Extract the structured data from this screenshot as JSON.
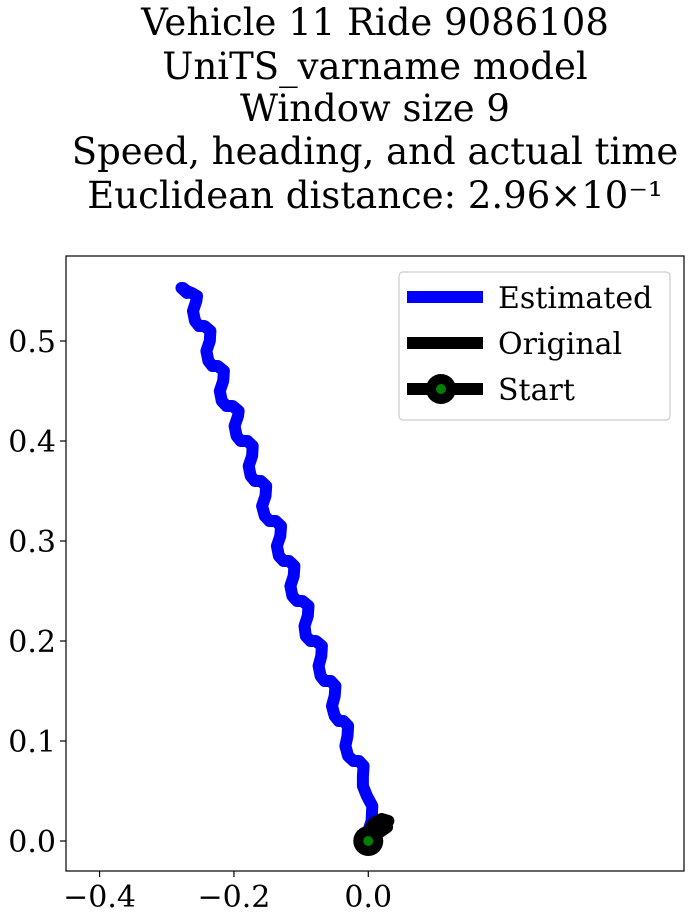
{
  "chart_data": {
    "type": "line",
    "title_lines": [
      "Vehicle 11 Ride 9086108",
      "UniTS_varname model",
      "Window size 9",
      "Speed, heading, and actual time",
      "Euclidean distance: 2.96×10⁻¹"
    ],
    "xlabel": "",
    "ylabel": "",
    "xlim": [
      -0.45,
      0.47
    ],
    "ylim": [
      -0.03,
      0.585
    ],
    "x_ticks": [
      -0.4,
      -0.2,
      0.0
    ],
    "x_tick_labels": [
      "−0.4",
      "−0.2",
      "0.0"
    ],
    "y_ticks": [
      0.0,
      0.1,
      0.2,
      0.3,
      0.4,
      0.5
    ],
    "y_tick_labels": [
      "0.0",
      "0.1",
      "0.2",
      "0.3",
      "0.4",
      "0.5"
    ],
    "grid": false,
    "legend_position": "top-right",
    "series": [
      {
        "name": "Estimated",
        "color": "#0000ff",
        "x": [
          0.0,
          0.005,
          0.006,
          -0.002,
          -0.008,
          -0.008,
          -0.007,
          -0.014,
          -0.022,
          -0.03,
          -0.034,
          -0.031,
          -0.03,
          -0.037,
          -0.044,
          -0.05,
          -0.054,
          -0.05,
          -0.049,
          -0.056,
          -0.065,
          -0.071,
          -0.074,
          -0.07,
          -0.069,
          -0.078,
          -0.086,
          -0.093,
          -0.095,
          -0.09,
          -0.089,
          -0.098,
          -0.106,
          -0.113,
          -0.116,
          -0.111,
          -0.11,
          -0.118,
          -0.126,
          -0.133,
          -0.136,
          -0.131,
          -0.13,
          -0.138,
          -0.147,
          -0.154,
          -0.158,
          -0.153,
          -0.152,
          -0.16,
          -0.169,
          -0.175,
          -0.178,
          -0.173,
          -0.172,
          -0.18,
          -0.19,
          -0.196,
          -0.199,
          -0.194,
          -0.193,
          -0.202,
          -0.211,
          -0.218,
          -0.221,
          -0.216,
          -0.215,
          -0.224,
          -0.232,
          -0.238,
          -0.241,
          -0.236,
          -0.235,
          -0.244,
          -0.252,
          -0.258,
          -0.261,
          -0.256,
          -0.255,
          -0.263,
          -0.27,
          -0.276,
          -0.278,
          -0.272,
          -0.27,
          -0.278
        ],
        "y": [
          0.01,
          0.02,
          0.035,
          0.045,
          0.055,
          0.065,
          0.075,
          0.08,
          0.08,
          0.085,
          0.095,
          0.105,
          0.115,
          0.12,
          0.12,
          0.125,
          0.135,
          0.145,
          0.155,
          0.16,
          0.16,
          0.165,
          0.175,
          0.185,
          0.195,
          0.2,
          0.2,
          0.205,
          0.215,
          0.225,
          0.235,
          0.24,
          0.24,
          0.245,
          0.255,
          0.265,
          0.275,
          0.28,
          0.28,
          0.285,
          0.295,
          0.305,
          0.315,
          0.32,
          0.32,
          0.325,
          0.335,
          0.345,
          0.355,
          0.36,
          0.36,
          0.365,
          0.375,
          0.385,
          0.395,
          0.4,
          0.4,
          0.405,
          0.415,
          0.425,
          0.43,
          0.435,
          0.435,
          0.44,
          0.45,
          0.46,
          0.47,
          0.475,
          0.475,
          0.48,
          0.49,
          0.5,
          0.51,
          0.515,
          0.515,
          0.52,
          0.53,
          0.54,
          0.545,
          0.548,
          0.55,
          0.553,
          0.553,
          0.55,
          0.548,
          0.553
        ]
      },
      {
        "name": "Original",
        "color": "#000000",
        "x": [
          0.0,
          0.012,
          0.025,
          0.03,
          0.02,
          0.008,
          0.003,
          0.015,
          0.028,
          0.018,
          0.005,
          0.0
        ],
        "y": [
          0.0,
          0.012,
          0.016,
          0.02,
          0.022,
          0.018,
          0.012,
          0.008,
          0.014,
          0.018,
          0.014,
          0.0
        ]
      }
    ],
    "start_point": {
      "name": "Start",
      "x": 0.0,
      "y": 0.0,
      "outer_color": "#000000",
      "inner_color": "#008000"
    },
    "legend": [
      "Estimated",
      "Original",
      "Start"
    ]
  }
}
